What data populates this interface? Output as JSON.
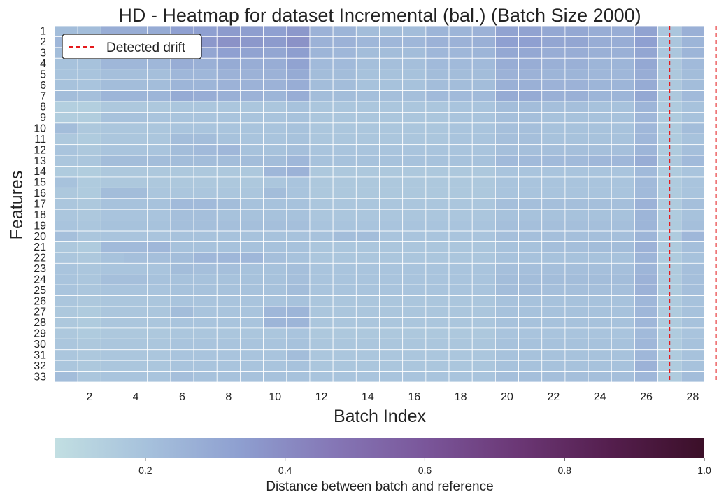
{
  "chart_data": {
    "type": "heatmap",
    "title": "HD - Heatmap for dataset Incremental (bal.) (Batch Size 2000)",
    "xlabel": "Batch Index",
    "ylabel": "Features",
    "x_ticks": [
      "2",
      "4",
      "6",
      "8",
      "10",
      "12",
      "14",
      "16",
      "18",
      "20",
      "22",
      "24",
      "26",
      "28"
    ],
    "y_ticks": [
      "1",
      "2",
      "3",
      "4",
      "5",
      "6",
      "7",
      "8",
      "9",
      "10",
      "11",
      "12",
      "13",
      "14",
      "15",
      "16",
      "17",
      "18",
      "19",
      "20",
      "21",
      "22",
      "23",
      "24",
      "25",
      "26",
      "27",
      "28",
      "29",
      "30",
      "31",
      "32",
      "33"
    ],
    "n_batches": 28,
    "legend": {
      "entries": [
        "Detected drift"
      ],
      "position": "top-left"
    },
    "drift_lines_at_batch": [
      27,
      29
    ],
    "drift_line_color": "#e41a1c",
    "colorbar": {
      "label": "Distance between batch and reference",
      "ticks": [
        "0.2",
        "0.4",
        "0.6",
        "0.8",
        "1.0"
      ],
      "range": [
        0.07,
        1.0
      ],
      "colormap": [
        "#c2dfe2",
        "#a6c1dc",
        "#8e9fd0",
        "#8577b6",
        "#7a569a",
        "#6b3775",
        "#541e4d",
        "#3b0f28"
      ]
    },
    "grid": false,
    "values": [
      [
        0.22,
        0.22,
        0.28,
        0.28,
        0.29,
        0.33,
        0.33,
        0.35,
        0.34,
        0.33,
        0.36,
        0.26,
        0.25,
        0.22,
        0.22,
        0.22,
        0.25,
        0.25,
        0.26,
        0.32,
        0.32,
        0.3,
        0.3,
        0.28,
        0.28,
        0.32,
        0.18,
        0.27
      ],
      [
        0.24,
        0.24,
        0.3,
        0.3,
        0.31,
        0.36,
        0.36,
        0.38,
        0.36,
        0.35,
        0.38,
        0.26,
        0.26,
        0.24,
        0.24,
        0.24,
        0.26,
        0.26,
        0.27,
        0.33,
        0.33,
        0.31,
        0.31,
        0.28,
        0.28,
        0.33,
        0.18,
        0.25
      ],
      [
        0.22,
        0.22,
        0.27,
        0.27,
        0.28,
        0.31,
        0.31,
        0.33,
        0.32,
        0.31,
        0.34,
        0.25,
        0.24,
        0.22,
        0.22,
        0.22,
        0.24,
        0.24,
        0.25,
        0.3,
        0.3,
        0.28,
        0.28,
        0.27,
        0.27,
        0.31,
        0.18,
        0.25
      ],
      [
        0.2,
        0.2,
        0.24,
        0.24,
        0.24,
        0.28,
        0.27,
        0.29,
        0.28,
        0.28,
        0.32,
        0.23,
        0.23,
        0.21,
        0.21,
        0.21,
        0.23,
        0.23,
        0.23,
        0.28,
        0.28,
        0.27,
        0.27,
        0.25,
        0.25,
        0.3,
        0.17,
        0.23
      ],
      [
        0.19,
        0.19,
        0.21,
        0.21,
        0.21,
        0.24,
        0.24,
        0.26,
        0.26,
        0.26,
        0.29,
        0.22,
        0.22,
        0.2,
        0.2,
        0.2,
        0.22,
        0.22,
        0.22,
        0.26,
        0.26,
        0.25,
        0.25,
        0.24,
        0.24,
        0.28,
        0.17,
        0.22
      ],
      [
        0.2,
        0.19,
        0.22,
        0.22,
        0.22,
        0.25,
        0.25,
        0.26,
        0.26,
        0.26,
        0.28,
        0.22,
        0.22,
        0.2,
        0.2,
        0.2,
        0.22,
        0.22,
        0.22,
        0.27,
        0.27,
        0.26,
        0.26,
        0.25,
        0.25,
        0.29,
        0.17,
        0.22
      ],
      [
        0.22,
        0.21,
        0.25,
        0.25,
        0.25,
        0.29,
        0.28,
        0.27,
        0.26,
        0.25,
        0.28,
        0.22,
        0.22,
        0.21,
        0.21,
        0.21,
        0.23,
        0.23,
        0.23,
        0.29,
        0.29,
        0.27,
        0.27,
        0.25,
        0.25,
        0.3,
        0.17,
        0.23
      ],
      [
        0.14,
        0.14,
        0.17,
        0.17,
        0.17,
        0.18,
        0.18,
        0.18,
        0.18,
        0.18,
        0.2,
        0.18,
        0.18,
        0.18,
        0.18,
        0.18,
        0.18,
        0.19,
        0.19,
        0.22,
        0.22,
        0.21,
        0.21,
        0.2,
        0.2,
        0.25,
        0.16,
        0.2
      ],
      [
        0.15,
        0.15,
        0.2,
        0.2,
        0.19,
        0.19,
        0.19,
        0.19,
        0.19,
        0.19,
        0.2,
        0.18,
        0.18,
        0.18,
        0.18,
        0.18,
        0.18,
        0.19,
        0.19,
        0.21,
        0.21,
        0.2,
        0.2,
        0.2,
        0.2,
        0.24,
        0.16,
        0.2
      ],
      [
        0.22,
        0.17,
        0.18,
        0.18,
        0.18,
        0.19,
        0.19,
        0.19,
        0.19,
        0.19,
        0.2,
        0.18,
        0.18,
        0.18,
        0.18,
        0.18,
        0.18,
        0.19,
        0.19,
        0.21,
        0.21,
        0.2,
        0.2,
        0.2,
        0.2,
        0.24,
        0.16,
        0.22
      ],
      [
        0.17,
        0.16,
        0.18,
        0.18,
        0.18,
        0.22,
        0.22,
        0.2,
        0.19,
        0.19,
        0.2,
        0.18,
        0.18,
        0.18,
        0.18,
        0.18,
        0.18,
        0.19,
        0.19,
        0.21,
        0.21,
        0.2,
        0.2,
        0.2,
        0.2,
        0.24,
        0.16,
        0.2
      ],
      [
        0.19,
        0.17,
        0.19,
        0.19,
        0.19,
        0.22,
        0.23,
        0.24,
        0.2,
        0.2,
        0.21,
        0.19,
        0.19,
        0.19,
        0.19,
        0.19,
        0.19,
        0.19,
        0.19,
        0.21,
        0.21,
        0.21,
        0.21,
        0.21,
        0.21,
        0.25,
        0.16,
        0.21
      ],
      [
        0.18,
        0.18,
        0.22,
        0.22,
        0.22,
        0.22,
        0.22,
        0.22,
        0.22,
        0.22,
        0.24,
        0.2,
        0.2,
        0.2,
        0.2,
        0.2,
        0.2,
        0.2,
        0.2,
        0.23,
        0.23,
        0.23,
        0.23,
        0.24,
        0.24,
        0.28,
        0.17,
        0.23
      ],
      [
        0.16,
        0.15,
        0.17,
        0.17,
        0.17,
        0.17,
        0.17,
        0.17,
        0.17,
        0.24,
        0.26,
        0.17,
        0.17,
        0.17,
        0.17,
        0.17,
        0.17,
        0.17,
        0.17,
        0.19,
        0.19,
        0.19,
        0.19,
        0.19,
        0.19,
        0.23,
        0.16,
        0.19
      ],
      [
        0.2,
        0.16,
        0.17,
        0.17,
        0.17,
        0.17,
        0.17,
        0.17,
        0.17,
        0.18,
        0.19,
        0.17,
        0.17,
        0.17,
        0.17,
        0.17,
        0.17,
        0.17,
        0.17,
        0.19,
        0.19,
        0.19,
        0.19,
        0.19,
        0.19,
        0.23,
        0.16,
        0.19
      ],
      [
        0.17,
        0.16,
        0.22,
        0.22,
        0.18,
        0.18,
        0.18,
        0.18,
        0.18,
        0.22,
        0.19,
        0.17,
        0.17,
        0.17,
        0.17,
        0.17,
        0.17,
        0.17,
        0.17,
        0.19,
        0.19,
        0.19,
        0.19,
        0.19,
        0.19,
        0.23,
        0.16,
        0.19
      ],
      [
        0.18,
        0.17,
        0.2,
        0.2,
        0.2,
        0.23,
        0.23,
        0.22,
        0.2,
        0.2,
        0.2,
        0.18,
        0.18,
        0.18,
        0.18,
        0.18,
        0.18,
        0.18,
        0.18,
        0.21,
        0.21,
        0.21,
        0.21,
        0.21,
        0.21,
        0.26,
        0.16,
        0.21
      ],
      [
        0.18,
        0.17,
        0.19,
        0.19,
        0.19,
        0.21,
        0.21,
        0.2,
        0.2,
        0.2,
        0.2,
        0.18,
        0.18,
        0.18,
        0.18,
        0.18,
        0.18,
        0.18,
        0.18,
        0.2,
        0.2,
        0.2,
        0.2,
        0.2,
        0.2,
        0.25,
        0.16,
        0.2
      ],
      [
        0.19,
        0.18,
        0.2,
        0.2,
        0.2,
        0.21,
        0.21,
        0.21,
        0.21,
        0.21,
        0.21,
        0.19,
        0.19,
        0.19,
        0.19,
        0.19,
        0.19,
        0.19,
        0.19,
        0.21,
        0.21,
        0.21,
        0.21,
        0.21,
        0.21,
        0.25,
        0.16,
        0.21
      ],
      [
        0.21,
        0.18,
        0.19,
        0.19,
        0.19,
        0.2,
        0.2,
        0.2,
        0.2,
        0.2,
        0.2,
        0.2,
        0.22,
        0.22,
        0.19,
        0.19,
        0.19,
        0.19,
        0.19,
        0.21,
        0.21,
        0.21,
        0.21,
        0.21,
        0.21,
        0.25,
        0.16,
        0.24
      ],
      [
        0.17,
        0.16,
        0.23,
        0.23,
        0.24,
        0.2,
        0.2,
        0.2,
        0.2,
        0.2,
        0.2,
        0.18,
        0.18,
        0.18,
        0.18,
        0.18,
        0.18,
        0.18,
        0.18,
        0.2,
        0.2,
        0.21,
        0.21,
        0.22,
        0.22,
        0.26,
        0.16,
        0.21
      ],
      [
        0.18,
        0.17,
        0.2,
        0.21,
        0.21,
        0.22,
        0.24,
        0.24,
        0.24,
        0.21,
        0.2,
        0.18,
        0.18,
        0.18,
        0.18,
        0.18,
        0.18,
        0.18,
        0.18,
        0.2,
        0.2,
        0.2,
        0.2,
        0.2,
        0.2,
        0.25,
        0.16,
        0.2
      ],
      [
        0.19,
        0.18,
        0.19,
        0.19,
        0.19,
        0.22,
        0.21,
        0.21,
        0.2,
        0.2,
        0.21,
        0.19,
        0.19,
        0.19,
        0.19,
        0.19,
        0.19,
        0.19,
        0.19,
        0.21,
        0.21,
        0.21,
        0.21,
        0.21,
        0.21,
        0.25,
        0.16,
        0.21
      ],
      [
        0.19,
        0.18,
        0.21,
        0.21,
        0.2,
        0.2,
        0.2,
        0.2,
        0.2,
        0.2,
        0.21,
        0.19,
        0.19,
        0.19,
        0.19,
        0.19,
        0.19,
        0.19,
        0.19,
        0.22,
        0.22,
        0.22,
        0.22,
        0.22,
        0.22,
        0.26,
        0.16,
        0.21
      ],
      [
        0.19,
        0.18,
        0.19,
        0.19,
        0.19,
        0.2,
        0.2,
        0.2,
        0.2,
        0.2,
        0.22,
        0.19,
        0.19,
        0.19,
        0.19,
        0.19,
        0.19,
        0.19,
        0.19,
        0.22,
        0.22,
        0.21,
        0.21,
        0.21,
        0.21,
        0.26,
        0.16,
        0.21
      ],
      [
        0.18,
        0.17,
        0.18,
        0.18,
        0.18,
        0.19,
        0.19,
        0.19,
        0.19,
        0.19,
        0.2,
        0.18,
        0.18,
        0.18,
        0.18,
        0.18,
        0.18,
        0.18,
        0.18,
        0.2,
        0.2,
        0.2,
        0.2,
        0.2,
        0.2,
        0.24,
        0.16,
        0.2
      ],
      [
        0.17,
        0.16,
        0.18,
        0.18,
        0.18,
        0.22,
        0.19,
        0.19,
        0.19,
        0.24,
        0.25,
        0.18,
        0.18,
        0.18,
        0.18,
        0.18,
        0.18,
        0.18,
        0.18,
        0.2,
        0.2,
        0.2,
        0.2,
        0.2,
        0.2,
        0.24,
        0.16,
        0.2
      ],
      [
        0.17,
        0.16,
        0.18,
        0.18,
        0.18,
        0.19,
        0.19,
        0.19,
        0.19,
        0.25,
        0.25,
        0.18,
        0.18,
        0.18,
        0.18,
        0.18,
        0.18,
        0.18,
        0.18,
        0.2,
        0.2,
        0.2,
        0.2,
        0.2,
        0.2,
        0.24,
        0.16,
        0.2
      ],
      [
        0.17,
        0.16,
        0.17,
        0.17,
        0.17,
        0.18,
        0.18,
        0.18,
        0.18,
        0.18,
        0.19,
        0.17,
        0.17,
        0.17,
        0.17,
        0.17,
        0.17,
        0.17,
        0.17,
        0.19,
        0.19,
        0.19,
        0.19,
        0.19,
        0.19,
        0.23,
        0.16,
        0.19
      ],
      [
        0.18,
        0.17,
        0.18,
        0.18,
        0.18,
        0.19,
        0.19,
        0.19,
        0.19,
        0.19,
        0.2,
        0.18,
        0.18,
        0.18,
        0.18,
        0.18,
        0.18,
        0.18,
        0.18,
        0.2,
        0.2,
        0.2,
        0.2,
        0.2,
        0.2,
        0.24,
        0.16,
        0.2
      ],
      [
        0.18,
        0.17,
        0.18,
        0.18,
        0.18,
        0.19,
        0.19,
        0.19,
        0.19,
        0.19,
        0.22,
        0.18,
        0.18,
        0.18,
        0.18,
        0.18,
        0.18,
        0.18,
        0.18,
        0.2,
        0.2,
        0.2,
        0.2,
        0.2,
        0.2,
        0.24,
        0.16,
        0.2
      ],
      [
        0.18,
        0.17,
        0.18,
        0.18,
        0.18,
        0.19,
        0.19,
        0.19,
        0.19,
        0.19,
        0.2,
        0.18,
        0.18,
        0.18,
        0.18,
        0.18,
        0.18,
        0.18,
        0.18,
        0.2,
        0.2,
        0.2,
        0.2,
        0.2,
        0.2,
        0.26,
        0.16,
        0.2
      ],
      [
        0.22,
        0.18,
        0.19,
        0.19,
        0.19,
        0.21,
        0.2,
        0.2,
        0.2,
        0.2,
        0.2,
        0.19,
        0.19,
        0.19,
        0.19,
        0.19,
        0.19,
        0.19,
        0.19,
        0.21,
        0.21,
        0.21,
        0.21,
        0.21,
        0.21,
        0.24,
        0.16,
        0.22
      ]
    ]
  }
}
